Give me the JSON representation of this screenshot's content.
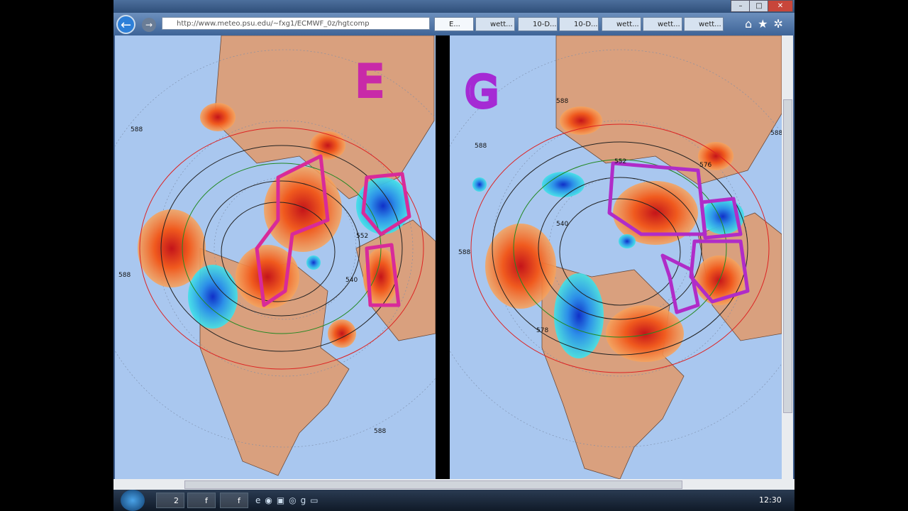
{
  "browser": {
    "url": "http://www.meteo.psu.edu/~fxg1/ECMWF_0z/hgtcomp",
    "tabs": [
      "E...",
      "wett...",
      "10-D...",
      "10-D...",
      "wett...",
      "wett...",
      "wett..."
    ]
  },
  "maps": [
    {
      "labels": [
        "588",
        "588",
        "552",
        "540",
        "588"
      ]
    },
    {
      "labels": [
        "588",
        "588",
        "552",
        "576",
        "540",
        "588",
        "578",
        "588"
      ]
    }
  ],
  "annotations": [
    "E",
    "G"
  ],
  "taskbar": {
    "buttons": [
      "2",
      "f",
      "f"
    ],
    "clock": "12:30"
  }
}
